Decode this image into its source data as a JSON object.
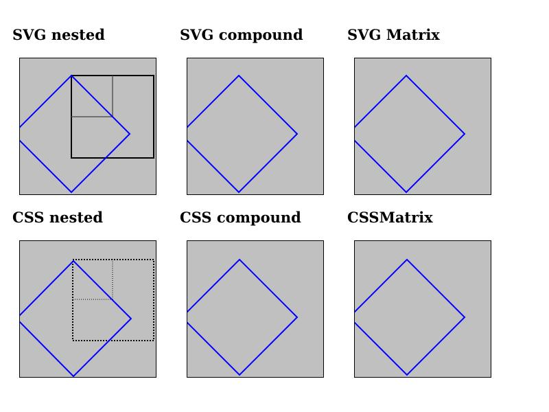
{
  "titles": {
    "svg_nested": "SVG nested",
    "svg_compound": "SVG compound",
    "svg_matrix": "SVG Matrix",
    "css_nested": "CSS nested",
    "css_compound": "CSS compound",
    "css_matrix": "CSSMatrix"
  },
  "colors": {
    "panel_background": "#c0c0c0",
    "diamond_stroke": "#0000ff",
    "outline_stroke": "#000000",
    "inner_grid_stroke": "#555555"
  }
}
